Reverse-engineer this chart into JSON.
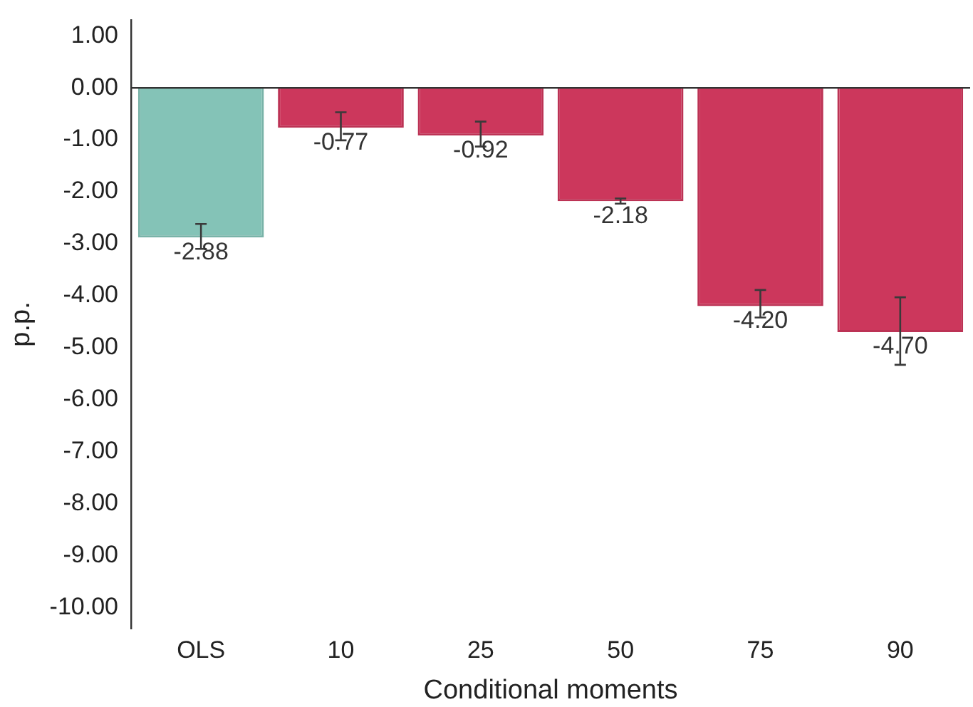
{
  "chart_data": {
    "type": "bar",
    "xlabel": "Conditional moments",
    "ylabel": "p.p.",
    "categories": [
      "OLS",
      "10",
      "25",
      "50",
      "75",
      "90"
    ],
    "values": [
      -2.88,
      -0.77,
      -0.92,
      -2.18,
      -4.2,
      -4.7
    ],
    "colors": [
      "#84c3b7",
      "#cc375c",
      "#cc375c",
      "#cc375c",
      "#cc375c",
      "#cc375c"
    ],
    "errors": [
      [
        -3.1,
        -2.62
      ],
      [
        -1.01,
        -0.47
      ],
      [
        -1.13,
        -0.65
      ],
      [
        -2.23,
        -2.13
      ],
      [
        -4.42,
        -3.89
      ],
      [
        -5.33,
        -4.03
      ]
    ],
    "value_labels": [
      "-2.88",
      "-0.77",
      "-0.92",
      "-2.18",
      "-4.20",
      "-4.70"
    ],
    "ylim": [
      -10.4,
      1.3
    ],
    "yticks": [
      {
        "value": 1,
        "label": "1.00"
      },
      {
        "value": 0,
        "label": "0.00"
      },
      {
        "value": -1,
        "label": "-1.00"
      },
      {
        "value": -2,
        "label": "-2.00"
      },
      {
        "value": -3,
        "label": "-3.00"
      },
      {
        "value": -4,
        "label": "-4.00"
      },
      {
        "value": -5,
        "label": "-5.00"
      },
      {
        "value": -6,
        "label": "-6.00"
      },
      {
        "value": -7,
        "label": "-7.00"
      },
      {
        "value": -8,
        "label": "-8.00"
      },
      {
        "value": -9,
        "label": "-9.00"
      },
      {
        "value": -10,
        "label": "-10.00"
      }
    ],
    "ref_lines": [
      {
        "axis": "y",
        "value": 0,
        "color": "#333333"
      }
    ],
    "grid": false
  }
}
